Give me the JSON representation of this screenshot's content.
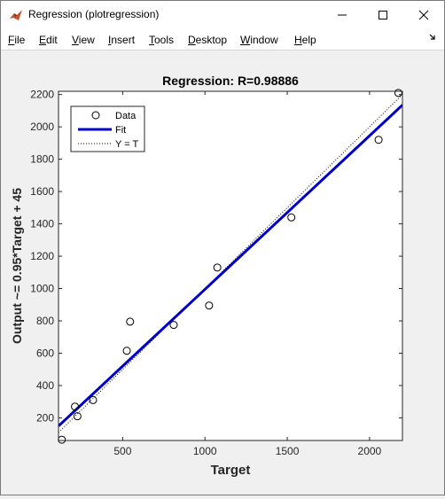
{
  "window": {
    "title": "Regression (plotregression)"
  },
  "menu": [
    {
      "label": "File",
      "ul": "F",
      "rest": "ile"
    },
    {
      "label": "Edit",
      "ul": "E",
      "rest": "dit"
    },
    {
      "label": "View",
      "ul": "V",
      "rest": "iew"
    },
    {
      "label": "Insert",
      "ul": "I",
      "rest": "nsert"
    },
    {
      "label": "Tools",
      "ul": "T",
      "rest": "ools"
    },
    {
      "label": "Desktop",
      "ul": "D",
      "rest": "esktop"
    },
    {
      "label": "Window",
      "ul": "W",
      "rest": "indow"
    },
    {
      "label": "Help",
      "ul": "H",
      "rest": "elp"
    }
  ],
  "colors": {
    "fit": "#0000cc",
    "data_marker": "#000000",
    "identity": "#000000"
  },
  "chart_data": {
    "type": "scatter",
    "title": "Regression: R=0.98886",
    "xlabel": "Target",
    "ylabel": "Output ~= 0.95*Target + 45",
    "xlim": [
      110,
      2200
    ],
    "ylim": [
      60,
      2220
    ],
    "xticks": [
      500,
      1000,
      1500,
      2000
    ],
    "yticks": [
      200,
      400,
      600,
      800,
      1000,
      1200,
      1400,
      1600,
      1800,
      2000,
      2200
    ],
    "grid": false,
    "legend_position": "top-left",
    "legend": [
      {
        "label": "Data",
        "style": "circle"
      },
      {
        "label": "Fit",
        "style": "solid-line"
      },
      {
        "label": "Y = T",
        "style": "dotted-line"
      }
    ],
    "series": [
      {
        "name": "Data",
        "x": [
          130,
          210,
          225,
          320,
          525,
          545,
          810,
          1025,
          1075,
          1525,
          2055,
          2175
        ],
        "y": [
          65,
          270,
          210,
          310,
          615,
          795,
          775,
          895,
          1130,
          1440,
          1920,
          2210
        ]
      }
    ],
    "fit": {
      "slope": 0.95,
      "intercept": 45
    },
    "identity": {
      "slope": 1,
      "intercept": 0
    }
  }
}
